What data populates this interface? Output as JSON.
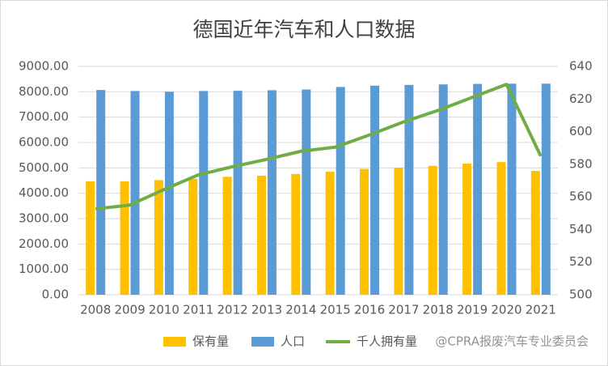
{
  "chart_data": {
    "type": "bar-line",
    "title": "德国近年汽车和人口数据",
    "categories": [
      "2008",
      "2009",
      "2010",
      "2011",
      "2012",
      "2013",
      "2014",
      "2015",
      "2016",
      "2017",
      "2018",
      "2019",
      "2020",
      "2021"
    ],
    "series": [
      {
        "name": "保有量",
        "color": "#FFC000",
        "type": "bar",
        "values": [
          4470,
          4470,
          4520,
          4570,
          4650,
          4690,
          4760,
          4850,
          4960,
          5010,
          5080,
          5170,
          5230,
          4880
        ]
      },
      {
        "name": "人口",
        "color": "#5B9BD5",
        "type": "bar",
        "values": [
          8070,
          8030,
          8000,
          8030,
          8040,
          8060,
          8090,
          8190,
          8240,
          8270,
          8290,
          8310,
          8320,
          8320
        ]
      },
      {
        "name": "千人拥有量",
        "color": "#70AD47",
        "type": "line",
        "axis": "y2",
        "values": [
          552.6,
          555,
          564.5,
          573.5,
          578.5,
          583,
          588,
          590.5,
          598,
          606,
          613,
          621,
          629,
          585
        ]
      }
    ],
    "ylim": [
      0,
      9000
    ],
    "yticks": [
      {
        "value": 0,
        "label": "0.00"
      },
      {
        "value": 1000,
        "label": "1000.00"
      },
      {
        "value": 2000,
        "label": "2000.00"
      },
      {
        "value": 3000,
        "label": "3000.00"
      },
      {
        "value": 4000,
        "label": "4000.00"
      },
      {
        "value": 5000,
        "label": "5000.00"
      },
      {
        "value": 6000,
        "label": "6000.00"
      },
      {
        "value": 7000,
        "label": "7000.00"
      },
      {
        "value": 8000,
        "label": "8000.00"
      },
      {
        "value": 9000,
        "label": "9000.00"
      }
    ],
    "y2lim": [
      500,
      640
    ],
    "y2ticks": [
      500,
      520,
      540,
      560,
      580,
      600,
      620,
      640
    ],
    "grid": true,
    "legend": "bottom",
    "watermark": "@CPRA报废汽车专业委员会"
  }
}
